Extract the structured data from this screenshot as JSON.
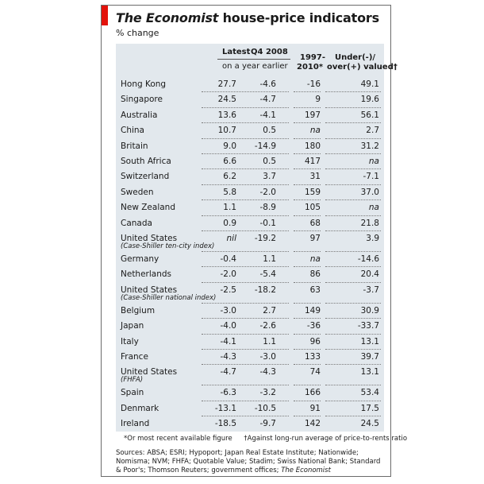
{
  "header": {
    "title_italic": "The Economist",
    "title_rest": " house-price indicators",
    "subtitle": "% change"
  },
  "columns": {
    "latest": "Latest",
    "q4_2008": "Q4 2008",
    "year_earlier": "on a year earlier",
    "range_line1": "1997-",
    "range_line2": "2010*",
    "valued_line1": "Under(-)/",
    "valued_line2": "over(+) valued†"
  },
  "chart_data": {
    "type": "table",
    "title": "The Economist house-price indicators",
    "subtitle": "% change",
    "columns": [
      "Latest",
      "Q4 2008",
      "1997-2010*",
      "Under(-)/over(+) valued†"
    ],
    "rows": [
      {
        "country": "Hong Kong",
        "note": "",
        "latest": "27.7",
        "q4_2008": "-4.6",
        "since_1997": "-16",
        "valuation": "49.1"
      },
      {
        "country": "Singapore",
        "note": "",
        "latest": "24.5",
        "q4_2008": "-4.7",
        "since_1997": "9",
        "valuation": "19.6"
      },
      {
        "country": "Australia",
        "note": "",
        "latest": "13.6",
        "q4_2008": "-4.1",
        "since_1997": "197",
        "valuation": "56.1"
      },
      {
        "country": "China",
        "note": "",
        "latest": "10.7",
        "q4_2008": "0.5",
        "since_1997": "na",
        "valuation": "2.7"
      },
      {
        "country": "Britain",
        "note": "",
        "latest": "9.0",
        "q4_2008": "-14.9",
        "since_1997": "180",
        "valuation": "31.2"
      },
      {
        "country": "South Africa",
        "note": "",
        "latest": "6.6",
        "q4_2008": "0.5",
        "since_1997": "417",
        "valuation": "na"
      },
      {
        "country": "Switzerland",
        "note": "",
        "latest": "6.2",
        "q4_2008": "3.7",
        "since_1997": "31",
        "valuation": "-7.1"
      },
      {
        "country": "Sweden",
        "note": "",
        "latest": "5.8",
        "q4_2008": "-2.0",
        "since_1997": "159",
        "valuation": "37.0"
      },
      {
        "country": "New Zealand",
        "note": "",
        "latest": "1.1",
        "q4_2008": "-8.9",
        "since_1997": "105",
        "valuation": "na"
      },
      {
        "country": "Canada",
        "note": "",
        "latest": "0.9",
        "q4_2008": "-0.1",
        "since_1997": "68",
        "valuation": "21.8"
      },
      {
        "country": "United States",
        "note": "(Case-Shiller ten-city index)",
        "latest": "nil",
        "q4_2008": "-19.2",
        "since_1997": "97",
        "valuation": "3.9"
      },
      {
        "country": "Germany",
        "note": "",
        "latest": "-0.4",
        "q4_2008": "1.1",
        "since_1997": "na",
        "valuation": "-14.6"
      },
      {
        "country": "Netherlands",
        "note": "",
        "latest": "-2.0",
        "q4_2008": "-5.4",
        "since_1997": "86",
        "valuation": "20.4"
      },
      {
        "country": "United States",
        "note": "(Case-Shiller national index)",
        "latest": "-2.5",
        "q4_2008": "-18.2",
        "since_1997": "63",
        "valuation": "-3.7"
      },
      {
        "country": "Belgium",
        "note": "",
        "latest": "-3.0",
        "q4_2008": "2.7",
        "since_1997": "149",
        "valuation": "30.9"
      },
      {
        "country": "Japan",
        "note": "",
        "latest": "-4.0",
        "q4_2008": "-2.6",
        "since_1997": "-36",
        "valuation": "-33.7"
      },
      {
        "country": "Italy",
        "note": "",
        "latest": "-4.1",
        "q4_2008": "1.1",
        "since_1997": "96",
        "valuation": "13.1"
      },
      {
        "country": "France",
        "note": "",
        "latest": "-4.3",
        "q4_2008": "-3.0",
        "since_1997": "133",
        "valuation": "39.7"
      },
      {
        "country": "United States",
        "note": "(FHFA)",
        "latest": "-4.7",
        "q4_2008": "-4.3",
        "since_1997": "74",
        "valuation": "13.1"
      },
      {
        "country": "Spain",
        "note": "",
        "latest": "-6.3",
        "q4_2008": "-3.2",
        "since_1997": "166",
        "valuation": "53.4"
      },
      {
        "country": "Denmark",
        "note": "",
        "latest": "-13.1",
        "q4_2008": "-10.5",
        "since_1997": "91",
        "valuation": "17.5"
      },
      {
        "country": "Ireland",
        "note": "",
        "latest": "-18.5",
        "q4_2008": "-9.7",
        "since_1997": "142",
        "valuation": "24.5"
      }
    ]
  },
  "footnotes": {
    "star": "*Or most recent available figure",
    "dagger": "†Against long-run average of price-to-rents ratio"
  },
  "sources": {
    "text": "Sources: ABSA; ESRI; Hypoport; Japan Real Estate Institute; Nationwide; Nomisma; NVM; FHFA; Quotable Value; Stadim; Swiss National Bank; Standard & Poor's; Thomson Reuters; government offices; ",
    "italic": "The Economist"
  }
}
